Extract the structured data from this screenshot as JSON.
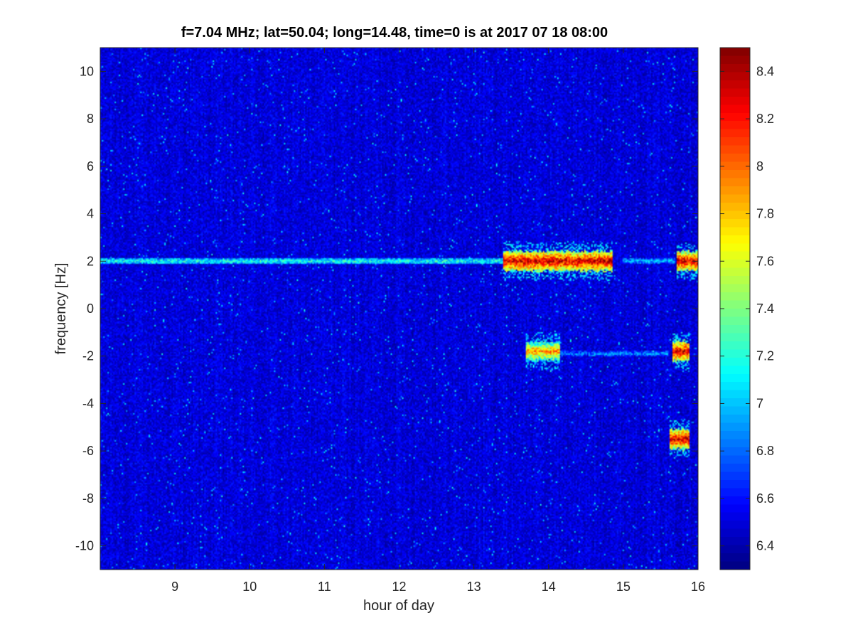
{
  "chart_data": {
    "type": "heatmap",
    "title": "f=7.04 MHz;  lat=50.04; long=14.48, time=0 is at 2017 07 18 08:00",
    "xlabel": "hour of day",
    "ylabel": "frequency [Hz]",
    "xlim": [
      8,
      16
    ],
    "ylim": [
      -11,
      11
    ],
    "xticks": [
      "9",
      "10",
      "11",
      "12",
      "13",
      "14",
      "15",
      "16"
    ],
    "yticks": [
      "10",
      "8",
      "6",
      "4",
      "2",
      "0",
      "-2",
      "-4",
      "-6",
      "-8",
      "-10"
    ],
    "colorbar": {
      "range": [
        6.3,
        8.5
      ],
      "ticks": [
        "8.4",
        "8.2",
        "8",
        "7.8",
        "7.6",
        "7.4",
        "7.2",
        "7",
        "6.8",
        "6.6",
        "6.4"
      ],
      "colormap": "jet"
    },
    "background_level": 6.5,
    "features": [
      {
        "kind": "line",
        "freq_hz": 2.0,
        "hour_start": 8.0,
        "hour_end": 13.4,
        "level": 7.2
      },
      {
        "kind": "line",
        "freq_hz": 2.0,
        "hour_start": 15.0,
        "hour_end": 15.7,
        "level": 7.0
      },
      {
        "kind": "burst",
        "freq_hz": 2.0,
        "hour_start": 13.4,
        "hour_end": 14.85,
        "level": 8.4
      },
      {
        "kind": "burst",
        "freq_hz": 2.0,
        "hour_start": 15.72,
        "hour_end": 16.0,
        "level": 8.4
      },
      {
        "kind": "burst",
        "freq_hz": -1.8,
        "hour_start": 13.7,
        "hour_end": 14.15,
        "level": 8.0
      },
      {
        "kind": "line",
        "freq_hz": -1.9,
        "hour_start": 14.15,
        "hour_end": 15.6,
        "level": 6.9
      },
      {
        "kind": "burst",
        "freq_hz": -1.8,
        "hour_start": 15.65,
        "hour_end": 15.88,
        "level": 8.4
      },
      {
        "kind": "burst",
        "freq_hz": -5.5,
        "hour_start": 15.62,
        "hour_end": 15.88,
        "level": 8.4
      }
    ]
  }
}
